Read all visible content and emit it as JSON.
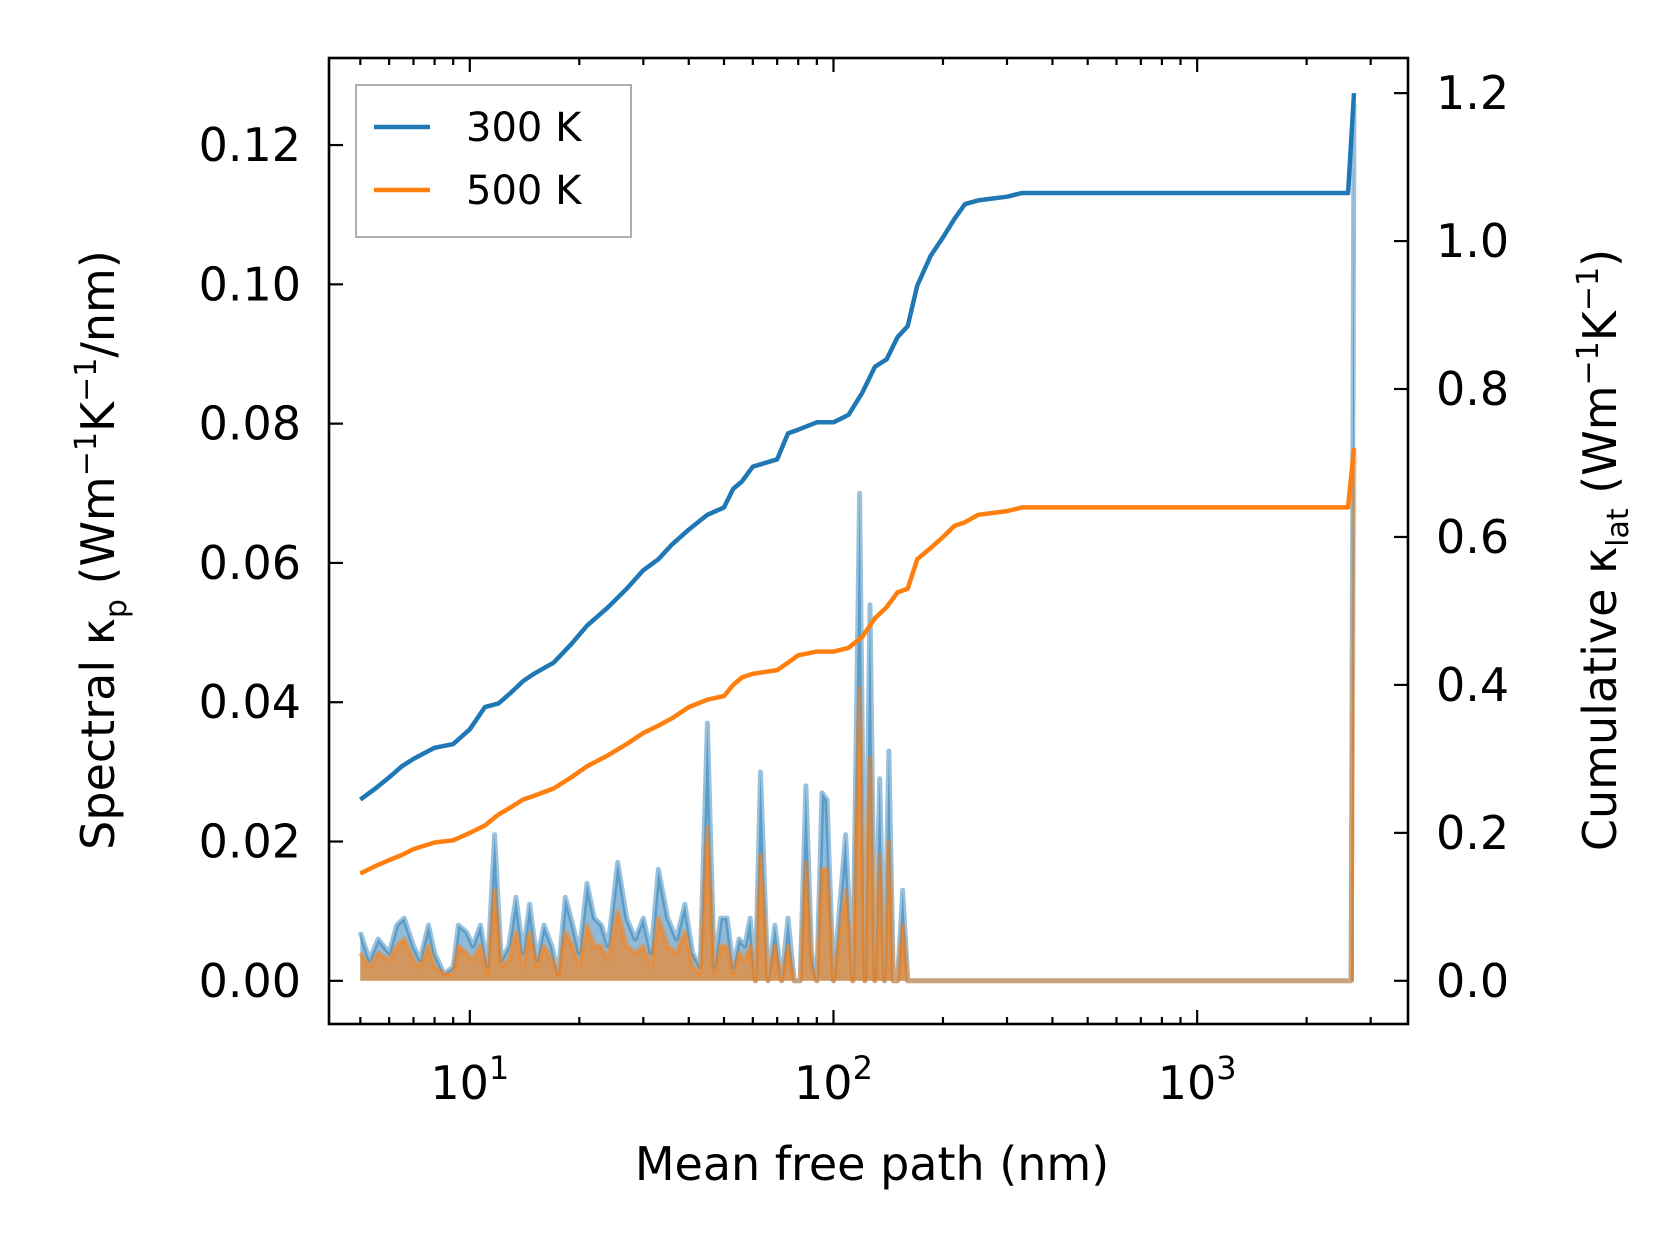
{
  "chart_data": {
    "type": "line",
    "xscale": "log",
    "xlabel": "Mean free path (nm)",
    "ylabel_left": "Spectral κp (Wm−1K−1/nm)",
    "ylabel_right": "Cumulative κlat (Wm−1K−1)",
    "ylabel_left_parts": {
      "a": "Spectral κ",
      "b": "p",
      "c": " (Wm",
      "d": "−1",
      "e": "K",
      "f": "−1",
      "g": "/nm)"
    },
    "ylabel_right_parts": {
      "a": "Cumulative κ",
      "b": "lat",
      "c": " (Wm",
      "d": "−1",
      "e": "K",
      "f": "−1",
      "g": ")"
    },
    "xlim": [
      4.1,
      3800
    ],
    "ylim_left": [
      -0.0062,
      0.1325
    ],
    "ylim_right": [
      -0.0584,
      1.2475
    ],
    "xtick_labels": [
      {
        "value": 10,
        "base": "10",
        "exp": "1"
      },
      {
        "value": 100,
        "base": "10",
        "exp": "2"
      },
      {
        "value": 1000,
        "base": "10",
        "exp": "3"
      }
    ],
    "yticks_left": [
      0.0,
      0.02,
      0.04,
      0.06,
      0.08,
      0.1,
      0.12
    ],
    "yticks_left_labels": [
      "0.00",
      "0.02",
      "0.04",
      "0.06",
      "0.08",
      "0.10",
      "0.12"
    ],
    "yticks_right": [
      0.0,
      0.2,
      0.4,
      0.6,
      0.8,
      1.0,
      1.2
    ],
    "yticks_right_labels": [
      "0.0",
      "0.2",
      "0.4",
      "0.6",
      "0.8",
      "1.0",
      "1.2"
    ],
    "legend": {
      "position": "top-left",
      "entries": [
        "300 K",
        "500 K"
      ]
    },
    "series": [
      {
        "name": "300 K",
        "color": "#1f77b4",
        "cumulative": {
          "x": [
            5,
            5.5,
            6,
            6.5,
            7,
            8,
            9,
            10,
            11,
            12,
            13,
            14,
            15,
            17,
            19,
            21,
            24,
            27,
            30,
            33,
            36,
            40,
            45,
            50,
            53,
            56,
            60,
            70,
            75,
            80,
            90,
            100,
            110,
            120,
            130,
            140,
            150,
            160,
            170,
            185,
            200,
            215,
            230,
            250,
            300,
            330,
            2600,
            2700
          ],
          "y": [
            0.245,
            0.26,
            0.275,
            0.29,
            0.3,
            0.315,
            0.32,
            0.34,
            0.37,
            0.375,
            0.39,
            0.405,
            0.415,
            0.43,
            0.455,
            0.48,
            0.505,
            0.53,
            0.555,
            0.57,
            0.59,
            0.61,
            0.63,
            0.64,
            0.665,
            0.675,
            0.695,
            0.705,
            0.74,
            0.745,
            0.755,
            0.755,
            0.765,
            0.795,
            0.83,
            0.84,
            0.87,
            0.885,
            0.94,
            0.98,
            1.005,
            1.03,
            1.05,
            1.055,
            1.06,
            1.065,
            1.065,
            1.2
          ]
        },
        "spectral": {
          "x": [
            5,
            5.3,
            5.6,
            6,
            6.3,
            6.6,
            7,
            7.3,
            7.7,
            8,
            8.5,
            9,
            9.3,
            9.8,
            10.2,
            10.7,
            11.2,
            11.7,
            12.2,
            12.8,
            13.4,
            14,
            14.6,
            15.3,
            16,
            16.8,
            17.5,
            18.3,
            19.2,
            20,
            21,
            22,
            23,
            24,
            25.5,
            27,
            28.5,
            30,
            31.5,
            33,
            35,
            37,
            39,
            41,
            43,
            45,
            47,
            49,
            51,
            53,
            55,
            57,
            59,
            61,
            63,
            66,
            69,
            72,
            75,
            78,
            81,
            84,
            87,
            90,
            93,
            96,
            100,
            108,
            113,
            118,
            122,
            126,
            130,
            134,
            138,
            142,
            146,
            150,
            155,
            160,
            165,
            170,
            175,
            180,
            190,
            195,
            200,
            205,
            210,
            215,
            220,
            225,
            230,
            235,
            240,
            245,
            250,
            255,
            260,
            270,
            290,
            300,
            310,
            320,
            330,
            2550,
            2600,
            2650,
            2700
          ],
          "y": [
            0.007,
            0.003,
            0.006,
            0.004,
            0.008,
            0.009,
            0.005,
            0.003,
            0.008,
            0.004,
            0.001,
            0.002,
            0.008,
            0.007,
            0.005,
            0.008,
            0.002,
            0.021,
            0.003,
            0.005,
            0.012,
            0.004,
            0.011,
            0.003,
            0.008,
            0.005,
            0.001,
            0.012,
            0.008,
            0.004,
            0.014,
            0.009,
            0.008,
            0.005,
            0.017,
            0.009,
            0.006,
            0.009,
            0.004,
            0.016,
            0.009,
            0.006,
            0.011,
            0.004,
            0.002,
            0.037,
            0.002,
            0.009,
            0.009,
            0.002,
            0.006,
            0.005,
            0.009,
            0.0,
            0.03,
            0.0,
            0.008,
            0.0,
            0.009,
            0.0,
            0.0,
            0.028,
            0.004,
            0.0,
            0.027,
            0.026,
            0.0,
            0.021,
            0.0,
            0.07,
            0.0,
            0.054,
            0.0,
            0.029,
            0.0,
            0.033,
            0.0,
            0.0,
            0.013,
            0.0,
            0.0,
            0.0,
            0.0,
            0.0,
            0.0,
            0.0,
            0.0,
            0.0,
            0.0,
            0.0,
            0.0,
            0.0,
            0.0,
            0.0,
            0.0,
            0.0,
            0.0,
            0.0,
            0.0,
            0.0,
            0.0,
            0.0,
            0.0,
            0.0,
            0.0,
            0.0,
            0.0,
            0.0,
            0.126
          ]
        }
      },
      {
        "name": "500 K",
        "color": "#ff7f0e",
        "cumulative": {
          "x": [
            5,
            5.5,
            6,
            6.5,
            7,
            8,
            9,
            10,
            11,
            12,
            13,
            14,
            15,
            17,
            19,
            21,
            24,
            27,
            30,
            33,
            36,
            40,
            45,
            50,
            53,
            56,
            60,
            70,
            75,
            80,
            90,
            100,
            110,
            120,
            130,
            140,
            150,
            160,
            170,
            185,
            200,
            215,
            230,
            250,
            300,
            330,
            2600,
            2700
          ],
          "y": [
            0.145,
            0.155,
            0.163,
            0.17,
            0.178,
            0.187,
            0.19,
            0.2,
            0.21,
            0.225,
            0.235,
            0.245,
            0.25,
            0.26,
            0.275,
            0.29,
            0.305,
            0.32,
            0.335,
            0.345,
            0.355,
            0.37,
            0.38,
            0.385,
            0.4,
            0.41,
            0.415,
            0.42,
            0.43,
            0.44,
            0.445,
            0.445,
            0.45,
            0.465,
            0.49,
            0.505,
            0.525,
            0.53,
            0.57,
            0.585,
            0.6,
            0.615,
            0.62,
            0.63,
            0.635,
            0.64,
            0.64,
            0.72
          ]
        },
        "spectral": {
          "x": [
            5,
            5.3,
            5.6,
            6,
            6.3,
            6.6,
            7,
            7.3,
            7.7,
            8,
            8.5,
            9,
            9.3,
            9.8,
            10.2,
            10.7,
            11.2,
            11.7,
            12.2,
            12.8,
            13.4,
            14,
            14.6,
            15.3,
            16,
            16.8,
            17.5,
            18.3,
            19.2,
            20,
            21,
            22,
            23,
            24,
            25.5,
            27,
            28.5,
            30,
            31.5,
            33,
            35,
            37,
            39,
            41,
            43,
            45,
            47,
            49,
            51,
            53,
            55,
            57,
            59,
            61,
            63,
            66,
            69,
            72,
            75,
            78,
            81,
            84,
            87,
            90,
            93,
            96,
            100,
            108,
            113,
            118,
            122,
            126,
            130,
            134,
            138,
            142,
            146,
            150,
            155,
            160,
            165,
            170,
            175,
            180,
            190,
            195,
            200,
            205,
            210,
            215,
            220,
            225,
            230,
            235,
            240,
            245,
            250,
            255,
            260,
            270,
            290,
            300,
            310,
            320,
            330,
            2550,
            2600,
            2650,
            2700
          ],
          "y": [
            0.004,
            0.002,
            0.004,
            0.003,
            0.005,
            0.006,
            0.003,
            0.002,
            0.005,
            0.002,
            0.001,
            0.001,
            0.005,
            0.004,
            0.003,
            0.005,
            0.001,
            0.013,
            0.002,
            0.003,
            0.007,
            0.002,
            0.007,
            0.002,
            0.005,
            0.003,
            0.001,
            0.007,
            0.005,
            0.002,
            0.008,
            0.005,
            0.005,
            0.003,
            0.01,
            0.005,
            0.004,
            0.005,
            0.002,
            0.009,
            0.005,
            0.004,
            0.007,
            0.002,
            0.001,
            0.022,
            0.001,
            0.005,
            0.005,
            0.001,
            0.004,
            0.003,
            0.005,
            0.0,
            0.018,
            0.0,
            0.005,
            0.0,
            0.005,
            0.0,
            0.0,
            0.017,
            0.002,
            0.0,
            0.016,
            0.016,
            0.0,
            0.013,
            0.0,
            0.042,
            0.0,
            0.032,
            0.0,
            0.018,
            0.0,
            0.02,
            0.0,
            0.0,
            0.008,
            0.0,
            0.0,
            0.0,
            0.0,
            0.0,
            0.0,
            0.0,
            0.0,
            0.0,
            0.0,
            0.0,
            0.0,
            0.0,
            0.0,
            0.0,
            0.0,
            0.0,
            0.0,
            0.0,
            0.0,
            0.0,
            0.0,
            0.0,
            0.0,
            0.0,
            0.0,
            0.0,
            0.0,
            0.0,
            0.076
          ]
        }
      }
    ]
  }
}
